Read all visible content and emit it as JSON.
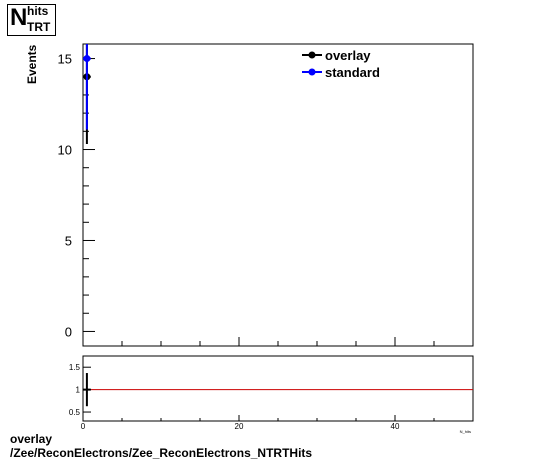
{
  "chart_data": [
    {
      "type": "scatter",
      "title": {
        "main": "N",
        "sup": "hits",
        "sub": "TRT"
      },
      "ylabel": "Events",
      "xlim": [
        0,
        50
      ],
      "ylim": [
        -0.8,
        15.8
      ],
      "yticks": [
        0,
        5,
        10,
        15
      ],
      "legend": {
        "placement": "top-right"
      },
      "series": [
        {
          "name": "overlay",
          "color": "#000000",
          "points": [
            {
              "x": 0.5,
              "y": 14,
              "err": 3.7
            }
          ]
        },
        {
          "name": "standard",
          "color": "#0000ff",
          "points": [
            {
              "x": 0.5,
              "y": 15,
              "err": 3.9
            }
          ]
        }
      ]
    },
    {
      "type": "line",
      "xlim": [
        0,
        50
      ],
      "ylim": [
        0.3,
        1.75
      ],
      "xticks": [
        0,
        20,
        40
      ],
      "yticks": [
        0.5,
        1,
        1.5
      ],
      "xlabel": "N_hits",
      "reference_line": {
        "y": 1,
        "color": "#cc0000"
      },
      "points": [
        {
          "x": 0.5,
          "y": 1,
          "err": 0.37
        }
      ]
    }
  ],
  "footer": {
    "line1": "overlay",
    "line2": "/Zee/ReconElectrons/Zee_ReconElectrons_NTRTHits"
  }
}
